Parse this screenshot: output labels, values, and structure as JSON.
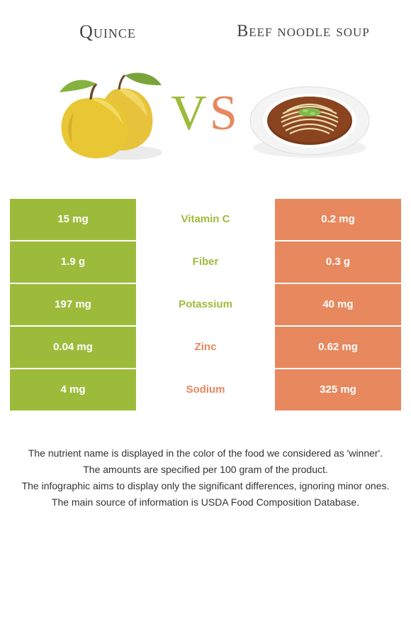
{
  "left_food": {
    "name": "Quince",
    "color": "#9dbb3b"
  },
  "right_food": {
    "name": "Beef noodle soup",
    "color": "#e7885e"
  },
  "vs": {
    "v": "V",
    "s": "S"
  },
  "nutrients": [
    {
      "label": "Vitamin C",
      "left": "15 mg",
      "right": "0.2 mg",
      "winner": "left"
    },
    {
      "label": "Fiber",
      "left": "1.9 g",
      "right": "0.3 g",
      "winner": "left"
    },
    {
      "label": "Potassium",
      "left": "197 mg",
      "right": "40 mg",
      "winner": "left"
    },
    {
      "label": "Zinc",
      "left": "0.04 mg",
      "right": "0.62 mg",
      "winner": "right"
    },
    {
      "label": "Sodium",
      "left": "4 mg",
      "right": "325 mg",
      "winner": "right"
    }
  ],
  "notes": [
    "The nutrient name is displayed in the color of the food we considered as 'winner'.",
    "The amounts are specified per 100 gram of the product.",
    "The infographic aims to display only the significant differences, ignoring minor ones.",
    "The main source of information is USDA Food Composition Database."
  ]
}
